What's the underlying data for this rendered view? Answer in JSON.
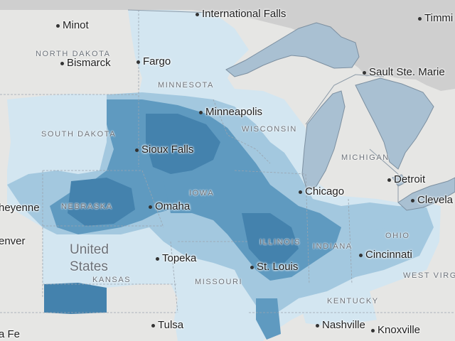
{
  "map": {
    "colors": {
      "land": "#e6e6e4",
      "canada": "#cfcfcf",
      "water": "#a9c0d2",
      "border": "#8d9ba8",
      "choropleth_light": "#d3e6f1",
      "choropleth_mid": "#a3c8df",
      "choropleth_dark": "#5f9ac0",
      "choropleth_darkest": "#4482ad"
    },
    "country_label": {
      "line1": "United",
      "line2": "States"
    },
    "state_labels": [
      {
        "id": "north-dakota",
        "text": "NORTH DAKOTA"
      },
      {
        "id": "south-dakota",
        "text": "SOUTH DAKOTA"
      },
      {
        "id": "minnesota",
        "text": "MINNESOTA"
      },
      {
        "id": "wisconsin",
        "text": "WISCONSIN"
      },
      {
        "id": "michigan",
        "text": "MICHIGAN"
      },
      {
        "id": "iowa",
        "text": "IOWA"
      },
      {
        "id": "nebraska",
        "text": "NEBRASKA"
      },
      {
        "id": "illinois",
        "text": "ILLINOIS"
      },
      {
        "id": "indiana",
        "text": "INDIANA"
      },
      {
        "id": "ohio",
        "text": "OHIO"
      },
      {
        "id": "kansas",
        "text": "KANSAS"
      },
      {
        "id": "missouri",
        "text": "MISSOURI"
      },
      {
        "id": "kentucky",
        "text": "KENTUCKY"
      },
      {
        "id": "west-virginia",
        "text": "WEST VIRGI"
      }
    ],
    "city_labels": [
      {
        "id": "minot",
        "text": "Minot"
      },
      {
        "id": "bismarck",
        "text": "Bismarck"
      },
      {
        "id": "fargo",
        "text": "Fargo"
      },
      {
        "id": "international-falls",
        "text": "International Falls"
      },
      {
        "id": "timmins",
        "text": "Timmi"
      },
      {
        "id": "sault-ste-marie",
        "text": "Sault Ste. Marie"
      },
      {
        "id": "minneapolis",
        "text": "Minneapolis"
      },
      {
        "id": "sioux-falls",
        "text": "Sioux Falls"
      },
      {
        "id": "detroit",
        "text": "Detroit"
      },
      {
        "id": "cleveland",
        "text": "Clevela"
      },
      {
        "id": "chicago",
        "text": "Chicago"
      },
      {
        "id": "omaha",
        "text": "Omaha"
      },
      {
        "id": "cheyenne",
        "text": "heyenne"
      },
      {
        "id": "denver",
        "text": "enver"
      },
      {
        "id": "topeka",
        "text": "Topeka"
      },
      {
        "id": "st-louis",
        "text": "St. Louis"
      },
      {
        "id": "cincinnati",
        "text": "Cincinnati"
      },
      {
        "id": "tulsa",
        "text": "Tulsa"
      },
      {
        "id": "santa-fe",
        "text": "a Fe"
      },
      {
        "id": "nashville",
        "text": "Nashville"
      },
      {
        "id": "knoxville",
        "text": "Knoxville"
      }
    ]
  }
}
